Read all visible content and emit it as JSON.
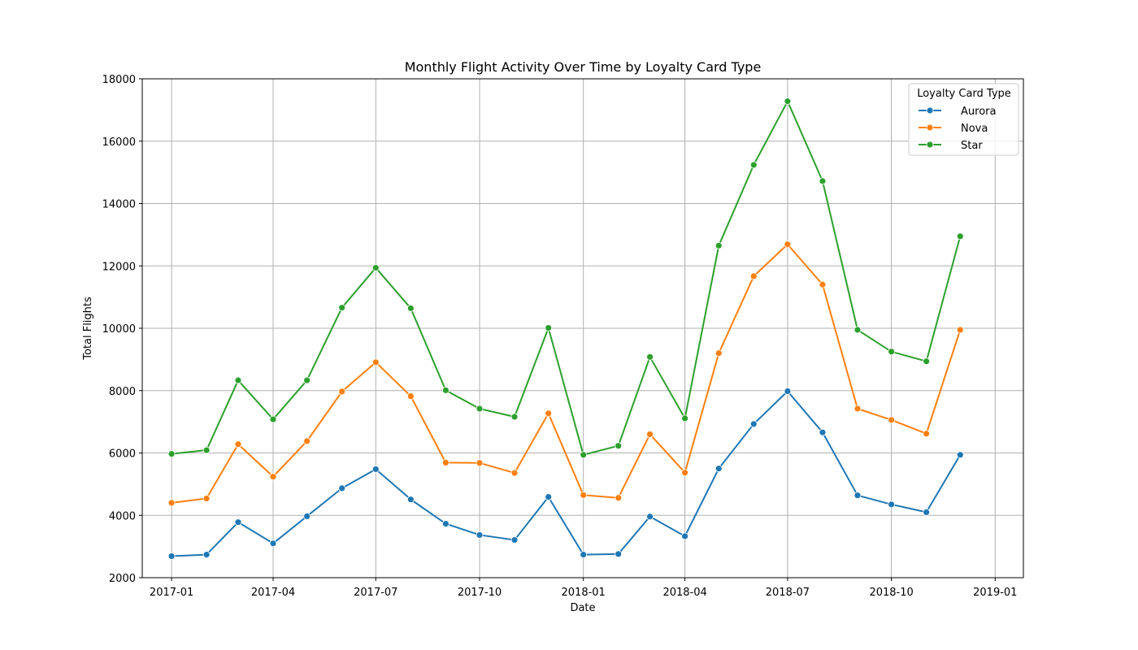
{
  "chart_data": {
    "type": "line",
    "title": "Monthly Flight Activity Over Time by Loyalty Card Type",
    "xlabel": "Date",
    "ylabel": "Total Flights",
    "ylim": [
      2000,
      18000
    ],
    "yticks": [
      2000,
      4000,
      6000,
      8000,
      10000,
      12000,
      14000,
      16000,
      18000
    ],
    "xlim": [
      "2016-12-06",
      "2019-01-26"
    ],
    "xticks": [
      "2017-01",
      "2017-04",
      "2017-07",
      "2017-10",
      "2018-01",
      "2018-04",
      "2018-07",
      "2018-10",
      "2019-01"
    ],
    "grid": true,
    "legend": {
      "title": "Loyalty Card Type",
      "placement": "top-right"
    },
    "x": [
      "2017-01-01",
      "2017-02-01",
      "2017-03-01",
      "2017-04-01",
      "2017-05-01",
      "2017-06-01",
      "2017-07-01",
      "2017-08-01",
      "2017-09-01",
      "2017-10-01",
      "2017-11-01",
      "2017-12-01",
      "2018-01-01",
      "2018-02-01",
      "2018-03-01",
      "2018-04-01",
      "2018-05-01",
      "2018-06-01",
      "2018-07-01",
      "2018-08-01",
      "2018-09-01",
      "2018-10-01",
      "2018-11-01",
      "2018-12-01"
    ],
    "series": [
      {
        "name": "Aurora",
        "color": "#1f77b4",
        "values": [
          2690,
          2740,
          3780,
          3100,
          3970,
          4870,
          5480,
          4510,
          3730,
          3370,
          3210,
          4590,
          2740,
          2760,
          3960,
          3330,
          5500,
          6930,
          7980,
          6660,
          4640,
          4350,
          4100,
          5940
        ]
      },
      {
        "name": "Nova",
        "color": "#ff7f0e",
        "values": [
          4400,
          4540,
          6280,
          5240,
          6380,
          7970,
          8910,
          7820,
          5690,
          5680,
          5360,
          7270,
          4650,
          4560,
          6600,
          5370,
          9200,
          11670,
          12690,
          11400,
          7420,
          7060,
          6620,
          9950
        ]
      },
      {
        "name": "Star",
        "color": "#2ca02c",
        "values": [
          5970,
          6090,
          8330,
          7080,
          8330,
          10660,
          11940,
          10640,
          8010,
          7420,
          7160,
          10010,
          5940,
          6230,
          9080,
          7110,
          12650,
          15240,
          17280,
          14720,
          9950,
          9250,
          8940,
          12950
        ]
      }
    ]
  }
}
